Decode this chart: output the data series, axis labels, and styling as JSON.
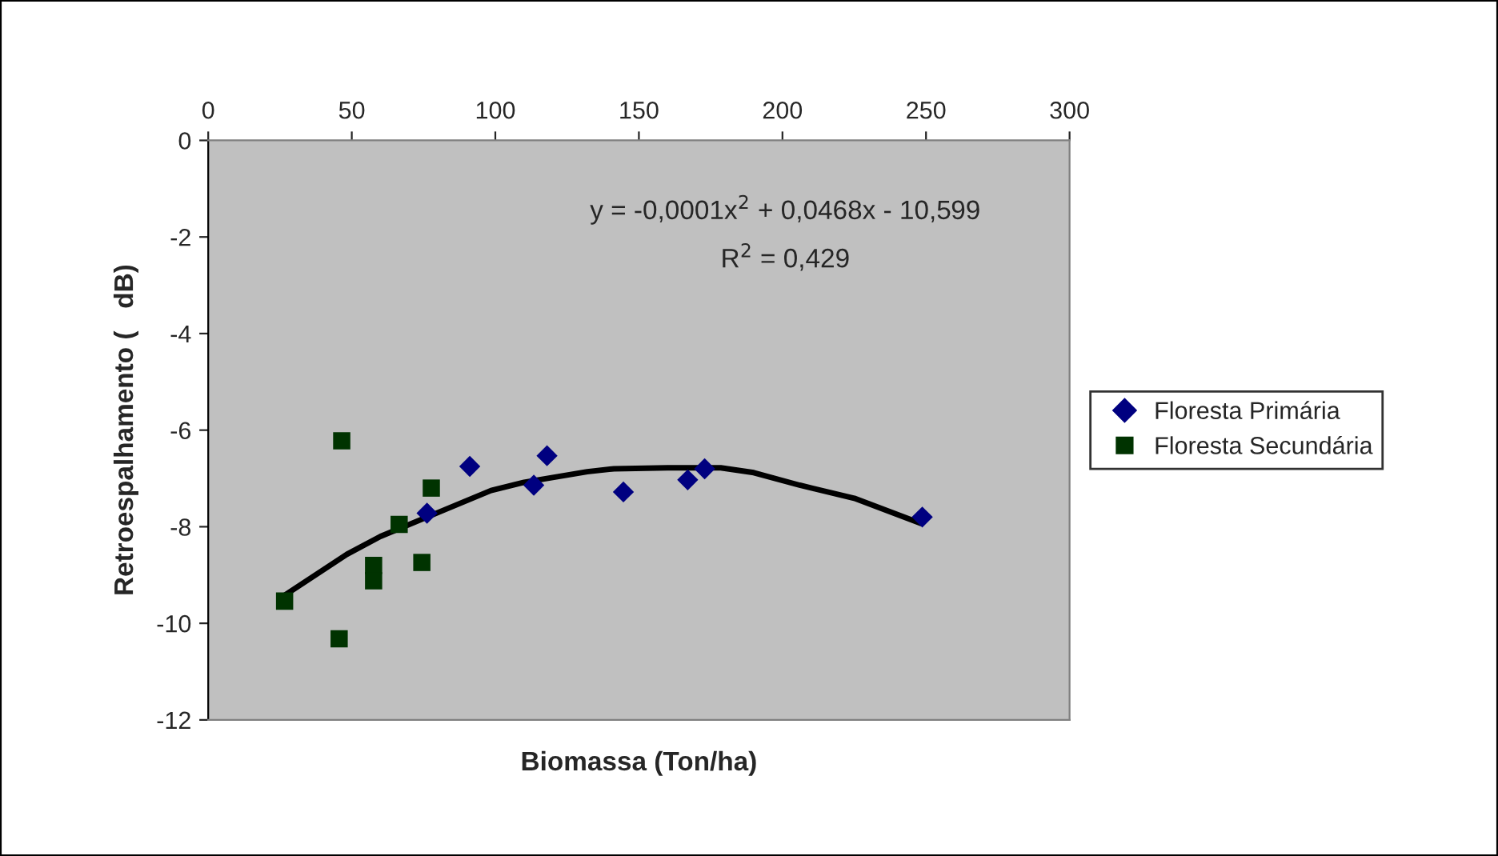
{
  "chart_data": {
    "type": "scatter",
    "xlabel": "Biomassa (Ton/ha)",
    "ylabel": "Retroespalhamento (   dB)",
    "xlim": [
      0,
      300
    ],
    "xticks": [
      0,
      50,
      100,
      150,
      200,
      250,
      300
    ],
    "ylim": [
      -12,
      0
    ],
    "yticks": [
      -12,
      -10,
      -8,
      -6,
      -4,
      -2,
      0
    ],
    "grid": false,
    "legend": "right",
    "annotations": [
      "y = -0,0001x$^{2}$ + 0,0468x - 10,599",
      "R$^{2}$ = 0,429"
    ],
    "series": [
      {
        "name": "Floresta Primária",
        "color": "#000080",
        "marker": "diamond",
        "x": [
          76.2,
          91.1,
          113.4,
          118,
          144.6,
          167,
          172.9,
          248.7
        ],
        "values": [
          -7.72,
          -6.75,
          -7.14,
          -6.53,
          -7.28,
          -7.03,
          -6.8,
          -7.8
        ]
      },
      {
        "name": "Floresta Secundária",
        "color": "#003300",
        "marker": "square",
        "x": [
          46.5,
          77.7,
          66.5,
          57.6,
          57.6,
          74.4,
          26.6,
          45.6
        ],
        "values": [
          -6.22,
          -7.2,
          -7.95,
          -8.8,
          -9.12,
          -8.74,
          -9.54,
          -10.32
        ]
      },
      {
        "type": "line",
        "color": "#000000",
        "marker": "none",
        "x": [
          26.6,
          48.3,
          60,
          76.2,
          98.5,
          110,
          132,
          141.3,
          160,
          178.5,
          190,
          206,
          225,
          248.2
        ],
        "values": [
          -9.42,
          -8.57,
          -8.2,
          -7.8,
          -7.25,
          -7.08,
          -6.86,
          -6.8,
          -6.78,
          -6.78,
          -6.88,
          -7.14,
          -7.41,
          -7.93
        ]
      }
    ]
  }
}
